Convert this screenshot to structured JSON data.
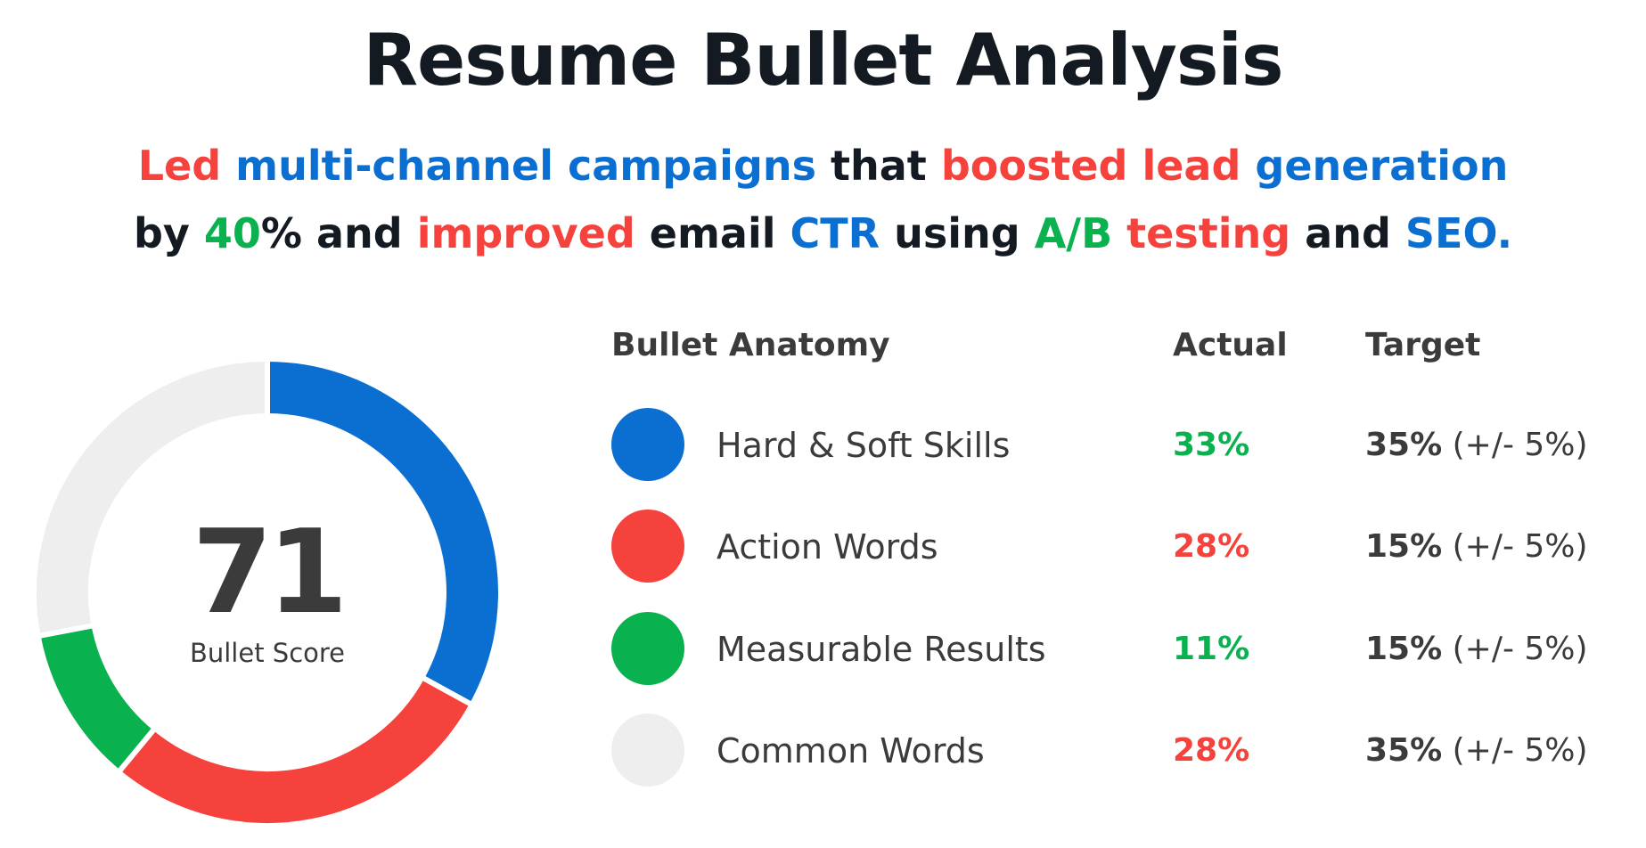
{
  "title": "Resume Bullet Analysis",
  "bullet": {
    "lines": [
      [
        {
          "text": "Led",
          "color": "red"
        },
        {
          "text": " ",
          "color": "plain"
        },
        {
          "text": "multi-channel campaigns",
          "color": "blue"
        },
        {
          "text": " that ",
          "color": "plain"
        },
        {
          "text": "boosted lead",
          "color": "red"
        },
        {
          "text": " ",
          "color": "plain"
        },
        {
          "text": "generation",
          "color": "blue"
        }
      ],
      [
        {
          "text": "by ",
          "color": "plain"
        },
        {
          "text": "40",
          "color": "green"
        },
        {
          "text": "% and ",
          "color": "plain"
        },
        {
          "text": "improved",
          "color": "red"
        },
        {
          "text": " email ",
          "color": "plain"
        },
        {
          "text": "CTR",
          "color": "blue"
        },
        {
          "text": " using ",
          "color": "plain"
        },
        {
          "text": "A/B",
          "color": "green"
        },
        {
          "text": " ",
          "color": "plain"
        },
        {
          "text": "testing",
          "color": "red"
        },
        {
          "text": " and ",
          "color": "plain"
        },
        {
          "text": "SEO.",
          "color": "blue"
        }
      ]
    ]
  },
  "score": {
    "value": "71",
    "label": "Bullet Score"
  },
  "table": {
    "headers": {
      "anatomy": "Bullet Anatomy",
      "actual": "Actual",
      "target": "Target"
    }
  },
  "colors": {
    "blue": "#0b6fd1",
    "red": "#f5423c",
    "green": "#0ab14f",
    "gray": "#eeeeee",
    "actual_good": "#0ab14f",
    "actual_bad": "#f5423c"
  },
  "chart_data": {
    "type": "pie",
    "donut": true,
    "center_text": "71",
    "center_label": "Bullet Score",
    "legend_position": "right",
    "categories": [
      "Hard & Soft Skills",
      "Action Words",
      "Measurable Results",
      "Common Words"
    ],
    "values": [
      33,
      28,
      11,
      28
    ],
    "slices": [
      {
        "label": "Hard & Soft Skills",
        "value": 33,
        "actual": "33%",
        "target_pct": "35%",
        "target_tol": "(+/- 5%)",
        "color": "#0b6fd1",
        "status": "good"
      },
      {
        "label": "Action Words",
        "value": 28,
        "actual": "28%",
        "target_pct": "15%",
        "target_tol": "(+/- 5%)",
        "color": "#f5423c",
        "status": "bad"
      },
      {
        "label": "Measurable Results",
        "value": 11,
        "actual": "11%",
        "target_pct": "15%",
        "target_tol": "(+/- 5%)",
        "color": "#0ab14f",
        "status": "good"
      },
      {
        "label": "Common Words",
        "value": 28,
        "actual": "28%",
        "target_pct": "35%",
        "target_tol": "(+/- 5%)",
        "color": "#eeeeee",
        "status": "bad"
      }
    ]
  }
}
